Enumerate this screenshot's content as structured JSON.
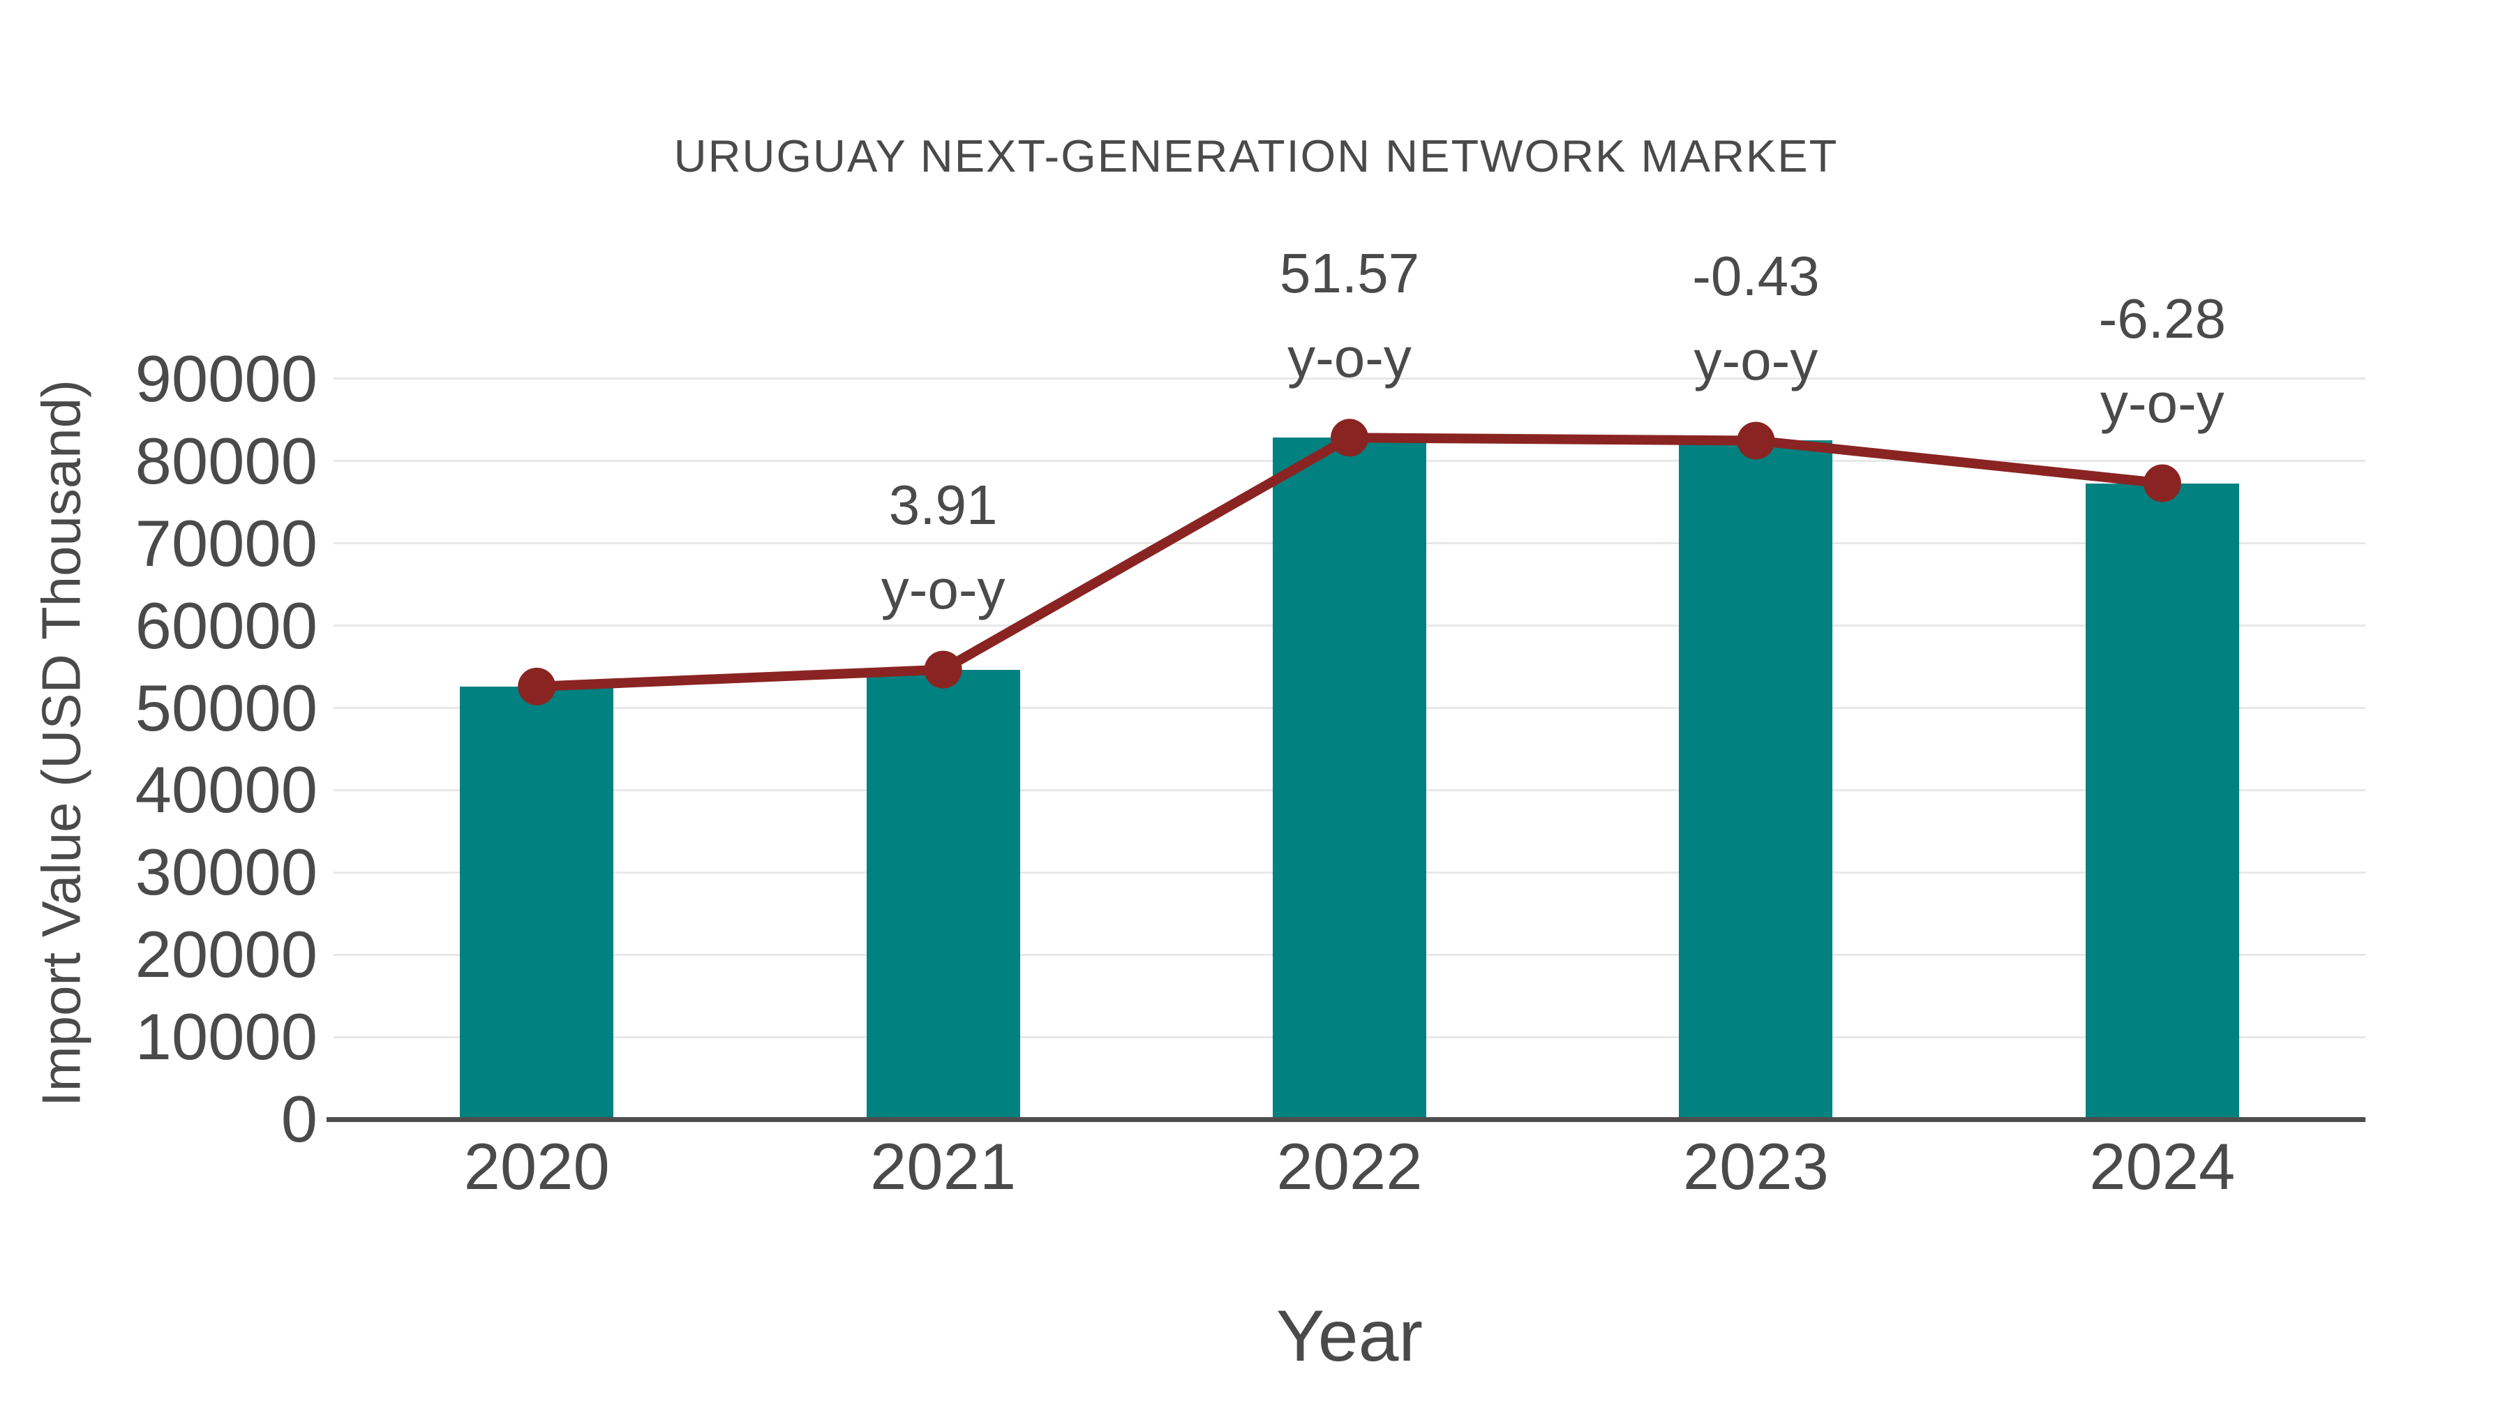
{
  "chart_data": {
    "type": "bar",
    "title": "URUGUAY NEXT-GENERATION NETWORK MARKET",
    "xlabel": "Year",
    "ylabel": "Import Value (USD Thousand)",
    "categories": [
      "2020",
      "2021",
      "2022",
      "2023",
      "2024"
    ],
    "series": [
      {
        "name": "import-value-bars",
        "type": "bar",
        "values": [
          52600,
          54656,
          82843,
          82487,
          77307
        ]
      },
      {
        "name": "import-value-trend-line",
        "type": "line",
        "values": [
          52600,
          54656,
          82843,
          82487,
          77307
        ]
      }
    ],
    "yoy_percent_labels": [
      null,
      "3.91",
      "51.57",
      "-0.43",
      "-6.28"
    ],
    "annotations": [
      {
        "category": "2021",
        "line1": "3.91",
        "line2": "y-o-y"
      },
      {
        "category": "2022",
        "line1": "51.57",
        "line2": "y-o-y"
      },
      {
        "category": "2023",
        "line1": "-0.43",
        "line2": "y-o-y"
      },
      {
        "category": "2024",
        "line1": "-6.28",
        "line2": "y-o-y"
      }
    ],
    "ylim": [
      0,
      90000
    ],
    "ytick_step": 10000,
    "yticks": [
      0,
      10000,
      20000,
      30000,
      40000,
      50000,
      60000,
      70000,
      80000,
      90000
    ],
    "ytick_labels": [
      "0",
      "10000",
      "20000",
      "30000",
      "40000",
      "50000",
      "60000",
      "70000",
      "80000",
      "90000"
    ],
    "grid": "horizontal",
    "legend": "none"
  },
  "colors": {
    "bar": "#018180",
    "line": "#8A2422",
    "marker": "#8A2422",
    "grid": "#E8E8E8",
    "axis": "#4D4D4D",
    "text": "#4A4A4A"
  }
}
